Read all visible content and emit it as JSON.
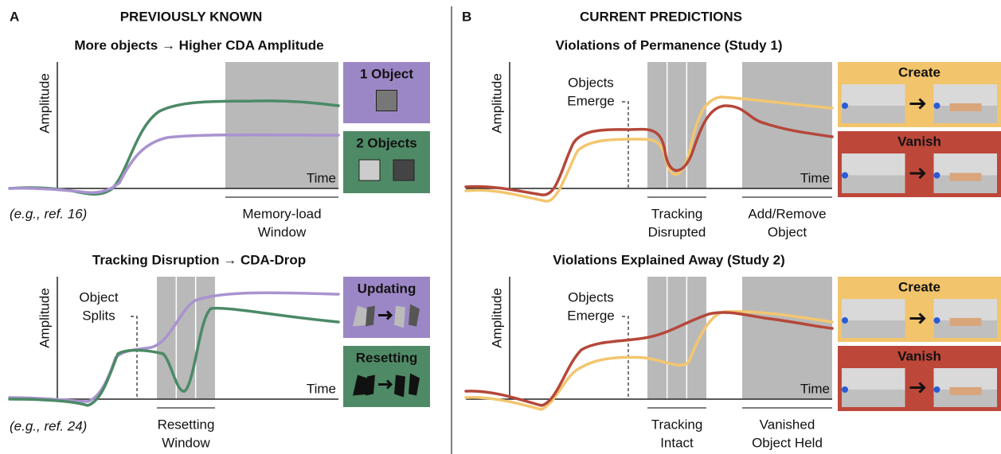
{
  "panels": [
    {
      "letter": "A",
      "heading": "PREVIOUSLY KNOWN",
      "plots": [
        {
          "title": "More objects → Higher CDA Amplitude",
          "y_label": "Amplitude",
          "x_label": "Time",
          "window_labels": [
            [
              "Memory-load",
              "Window"
            ]
          ],
          "ref": "(e.g., ref. 16)",
          "cards": [
            "1 Object",
            "2 Objects"
          ]
        },
        {
          "title": "Tracking Disruption → CDA-Drop",
          "y_label": "Amplitude",
          "x_label": "Time",
          "annotation": [
            "Object",
            "Splits"
          ],
          "window_labels": [
            [
              "Resetting",
              "Window"
            ]
          ],
          "ref": "(e.g., ref. 24)",
          "cards": [
            "Updating",
            "Resetting"
          ]
        }
      ]
    },
    {
      "letter": "B",
      "heading": "CURRENT PREDICTIONS",
      "plots": [
        {
          "title": "Violations of Permanence (Study 1)",
          "y_label": "Amplitude",
          "x_label": "Time",
          "annotation": [
            "Objects",
            "Emerge"
          ],
          "window_labels": [
            [
              "Tracking",
              "Disrupted"
            ],
            [
              "Add/Remove",
              "Object"
            ]
          ],
          "cards": [
            "Create",
            "Vanish"
          ]
        },
        {
          "title": "Violations Explained Away (Study 2)",
          "y_label": "Amplitude",
          "x_label": "Time",
          "annotation": [
            "Objects",
            "Emerge"
          ],
          "window_labels": [
            [
              "Tracking",
              "Intact"
            ],
            [
              "Vanished",
              "Object Held"
            ]
          ],
          "cards": [
            "Create",
            "Vanish"
          ]
        }
      ]
    }
  ]
}
